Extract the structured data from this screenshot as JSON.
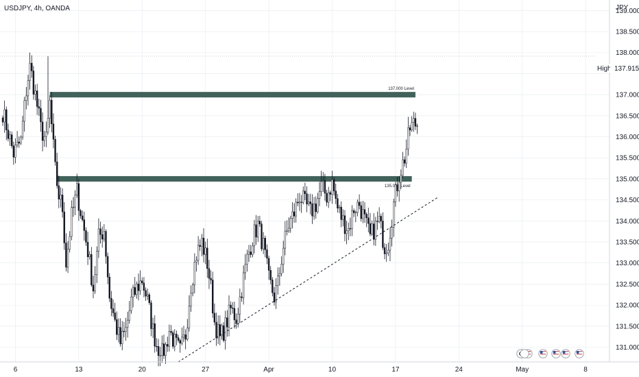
{
  "header": {
    "symbol_label": "USDJPY, 4h, OANDA",
    "currency": "JPY"
  },
  "chart_data": {
    "type": "candlestick",
    "instrument": "USDJPY",
    "timeframe": "4h",
    "source": "OANDA",
    "ylim": [
      130.65,
      139.25
    ],
    "y_ticks": [
      131.0,
      131.5,
      132.0,
      132.5,
      133.0,
      133.5,
      134.0,
      134.5,
      135.0,
      135.5,
      136.0,
      136.5,
      137.0,
      137.5,
      138.0,
      138.5,
      139.0
    ],
    "y_tick_labels": [
      "131.000",
      "131.500",
      "132.000",
      "132.500",
      "133.000",
      "133.500",
      "134.000",
      "134.500",
      "135.000",
      "135.500",
      "136.000",
      "136.500",
      "137.000",
      "137.500",
      "138.000",
      "138.500",
      "139.000"
    ],
    "x_ticks": [
      {
        "label": "6",
        "bar": 7
      },
      {
        "label": "13",
        "bar": 42
      },
      {
        "label": "20",
        "bar": 77
      },
      {
        "label": "27",
        "bar": 112
      },
      {
        "label": "Apr",
        "bar": 147
      },
      {
        "label": "10",
        "bar": 182
      },
      {
        "label": "17",
        "bar": 217
      },
      {
        "label": "24",
        "bar": 252
      },
      {
        "label": "May",
        "bar": 287
      },
      {
        "label": "8",
        "bar": 322
      }
    ],
    "price_anchors": [
      [
        0,
        136.6
      ],
      [
        3,
        136.1
      ],
      [
        6,
        135.6
      ],
      [
        10,
        135.9
      ],
      [
        13,
        137.1
      ],
      [
        15,
        137.7
      ],
      [
        18,
        137.0
      ],
      [
        21,
        136.2
      ],
      [
        24,
        135.9
      ],
      [
        26,
        136.8
      ],
      [
        29,
        135.2
      ],
      [
        31,
        134.6
      ],
      [
        33,
        134.3
      ],
      [
        35,
        133.0
      ],
      [
        38,
        134.1
      ],
      [
        41,
        134.7
      ],
      [
        44,
        134.0
      ],
      [
        47,
        133.3
      ],
      [
        50,
        132.4
      ],
      [
        53,
        133.6
      ],
      [
        56,
        133.8
      ],
      [
        59,
        132.2
      ],
      [
        62,
        131.6
      ],
      [
        65,
        131.1
      ],
      [
        68,
        131.4
      ],
      [
        71,
        132.1
      ],
      [
        74,
        132.4
      ],
      [
        77,
        132.6
      ],
      [
        80,
        132.1
      ],
      [
        83,
        131.4
      ],
      [
        86,
        130.9
      ],
      [
        89,
        130.8
      ],
      [
        92,
        131.4
      ],
      [
        95,
        131.1
      ],
      [
        98,
        130.9
      ],
      [
        101,
        131.3
      ],
      [
        104,
        132.5
      ],
      [
        107,
        133.2
      ],
      [
        110,
        133.5
      ],
      [
        113,
        133.0
      ],
      [
        115,
        132.4
      ],
      [
        117,
        131.6
      ],
      [
        120,
        131.2
      ],
      [
        123,
        131.5
      ],
      [
        126,
        131.9
      ],
      [
        129,
        131.7
      ],
      [
        132,
        132.4
      ],
      [
        135,
        133.1
      ],
      [
        138,
        133.6
      ],
      [
        141,
        133.9
      ],
      [
        144,
        133.4
      ],
      [
        147,
        132.6
      ],
      [
        150,
        132.2
      ],
      [
        152,
        132.5
      ],
      [
        155,
        133.4
      ],
      [
        158,
        133.9
      ],
      [
        161,
        134.2
      ],
      [
        164,
        134.6
      ],
      [
        167,
        134.4
      ],
      [
        170,
        134.2
      ],
      [
        173,
        134.4
      ],
      [
        176,
        134.8
      ],
      [
        179,
        134.6
      ],
      [
        182,
        134.9
      ],
      [
        185,
        134.3
      ],
      [
        188,
        134.0
      ],
      [
        191,
        133.8
      ],
      [
        194,
        134.3
      ],
      [
        197,
        134.4
      ],
      [
        200,
        134.0
      ],
      [
        203,
        133.6
      ],
      [
        205,
        133.8
      ],
      [
        208,
        134.0
      ],
      [
        211,
        133.4
      ],
      [
        213,
        133.5
      ],
      [
        216,
        134.4
      ],
      [
        219,
        135.1
      ],
      [
        222,
        135.5
      ],
      [
        225,
        136.2
      ],
      [
        227,
        136.3
      ]
    ],
    "series": [
      {
        "name": "USDJPY",
        "type": "candlestick",
        "bars": 230,
        "high": 137.915
      }
    ],
    "levels": [
      {
        "label": "137.000 Level",
        "price": 137.0,
        "start_bar": 26,
        "end_bar": 228
      },
      {
        "label": "135.000 Level",
        "price": 135.0,
        "start_bar": 30,
        "end_bar": 226
      }
    ],
    "trendline": {
      "style": "dashed",
      "points": [
        [
          97,
          130.65
        ],
        [
          240,
          134.55
        ]
      ]
    },
    "high_marker": {
      "label": "High",
      "value": 137.915,
      "value_label": "137.915"
    },
    "colors": {
      "up": "#ffffff",
      "down": "#131722",
      "wick": "#131722",
      "level_band": "#41625a",
      "grid": "#e6e9ee"
    }
  },
  "footer_icons": [
    "clock-icon",
    "flag-icon",
    "flag-icon",
    "flag-icon",
    "flag-icon",
    "flag-icon",
    "flag-icon"
  ]
}
